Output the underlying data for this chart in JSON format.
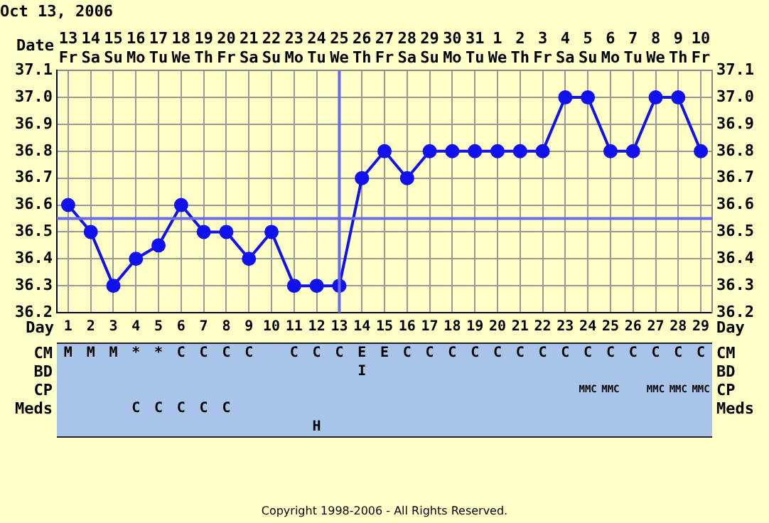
{
  "chart_data": [
    {
      "type": "line",
      "title": "Oct 13, 2006",
      "xlabel": "Date",
      "x2label": "Day",
      "categories": [
        "13 Fr",
        "14 Sa",
        "15 Su",
        "16 Mo",
        "17 Tu",
        "18 We",
        "19 Th",
        "20 Fr",
        "21 Sa",
        "22 Su",
        "23 Mo",
        "24 Tu",
        "25 We",
        "26 Th",
        "27 Fr",
        "28 Sa",
        "29 Su",
        "30 Mo",
        "31 Tu",
        "1 We",
        "2 Th",
        "3 Fr",
        "4 Sa",
        "5 Su",
        "6 Mo",
        "7 Tu",
        "8 We",
        "9 Th",
        "10 Fr"
      ],
      "x2lim": [
        0.5,
        29.5
      ],
      "x2ticks": [
        1,
        2,
        3,
        4,
        5,
        6,
        7,
        8,
        9,
        10,
        11,
        12,
        13,
        14,
        15,
        16,
        17,
        18,
        19,
        20,
        21,
        22,
        23,
        24,
        25,
        26,
        27,
        28,
        29
      ],
      "series": [
        {
          "color": "#1010f0",
          "values": [
            36.6,
            36.5,
            36.3,
            36.4,
            36.45,
            36.6,
            36.5,
            36.5,
            36.4,
            36.5,
            36.3,
            36.3,
            36.3,
            36.7,
            36.8,
            36.7,
            36.8,
            36.8,
            36.8,
            36.8,
            36.8,
            36.8,
            37.0,
            37.0,
            36.8,
            36.8,
            37.0,
            37.0,
            36.8
          ]
        }
      ],
      "ylim": [
        36.2,
        37.1
      ],
      "yticks": [
        {
          "value": 36.2,
          "label": "36.2"
        },
        {
          "value": 36.3,
          "label": "36.3"
        },
        {
          "value": 36.4,
          "label": "36.4"
        },
        {
          "value": 36.5,
          "label": "36.5"
        },
        {
          "value": 36.6,
          "label": "36.6"
        },
        {
          "value": 36.7,
          "label": "36.7"
        },
        {
          "value": 36.8,
          "label": "36.8"
        },
        {
          "value": 36.9,
          "label": "36.9"
        },
        {
          "value": 37.0,
          "label": "37.0"
        },
        {
          "value": 37.1,
          "label": "37.1"
        }
      ],
      "y2lim": [
        36.2,
        37.1
      ],
      "y2ticks": [
        {
          "value": 36.2,
          "label": "36.2"
        },
        {
          "value": 36.3,
          "label": "36.3"
        },
        {
          "value": 36.4,
          "label": "36.4"
        },
        {
          "value": 36.5,
          "label": "36.5"
        },
        {
          "value": 36.6,
          "label": "36.6"
        },
        {
          "value": 36.7,
          "label": "36.7"
        },
        {
          "value": 36.8,
          "label": "36.8"
        },
        {
          "value": 36.9,
          "label": "36.9"
        },
        {
          "value": 37.0,
          "label": "37.0"
        },
        {
          "value": 37.1,
          "label": "37.1"
        }
      ],
      "ref_lines": [
        {
          "axis": "y",
          "value": 36.55,
          "color": "#6a6af0"
        },
        {
          "axis": "x",
          "value": "25 We",
          "color": "#6a6af0"
        }
      ],
      "grid": true,
      "legend": false,
      "marker": "circle",
      "line_style": "solid",
      "annotations": [
        "Copyright 1998-2006 - All Rights Reserved."
      ]
    },
    {
      "type": "other",
      "y_categories": [
        "CM",
        "BD",
        "CP",
        "Meds",
        null
      ],
      "y2_categories": [
        "CM",
        "BD",
        "CP",
        "Meds",
        null
      ],
      "cell_labels": [
        [
          "M",
          "M",
          "M",
          "*",
          "*",
          "C",
          "C",
          "C",
          "C",
          null,
          "C",
          "C",
          "C",
          "E",
          "E",
          "C",
          "C",
          "C",
          "C",
          "C",
          "C",
          "C",
          "C",
          "C",
          "C",
          "C",
          "C",
          "C",
          "C"
        ],
        [
          null,
          null,
          null,
          null,
          null,
          null,
          null,
          null,
          null,
          null,
          null,
          null,
          null,
          "I",
          null,
          null,
          null,
          null,
          null,
          null,
          null,
          null,
          null,
          null,
          null,
          null,
          null,
          null,
          null
        ],
        [
          null,
          null,
          null,
          null,
          null,
          null,
          null,
          null,
          null,
          null,
          null,
          null,
          null,
          null,
          null,
          null,
          null,
          null,
          null,
          null,
          null,
          null,
          null,
          "MMC",
          "MMC",
          null,
          "MMC",
          "MMC",
          "MMC"
        ],
        [
          null,
          null,
          null,
          "C",
          "C",
          "C",
          "C",
          "C",
          null,
          null,
          null,
          null,
          null,
          null,
          null,
          null,
          null,
          null,
          null,
          null,
          null,
          null,
          null,
          null,
          null,
          null,
          null,
          null,
          null
        ],
        [
          null,
          null,
          null,
          null,
          null,
          null,
          null,
          null,
          null,
          null,
          null,
          "H",
          null,
          null,
          null,
          null,
          null,
          null,
          null,
          null,
          null,
          null,
          null,
          null,
          null,
          null,
          null,
          null,
          null
        ]
      ]
    }
  ]
}
